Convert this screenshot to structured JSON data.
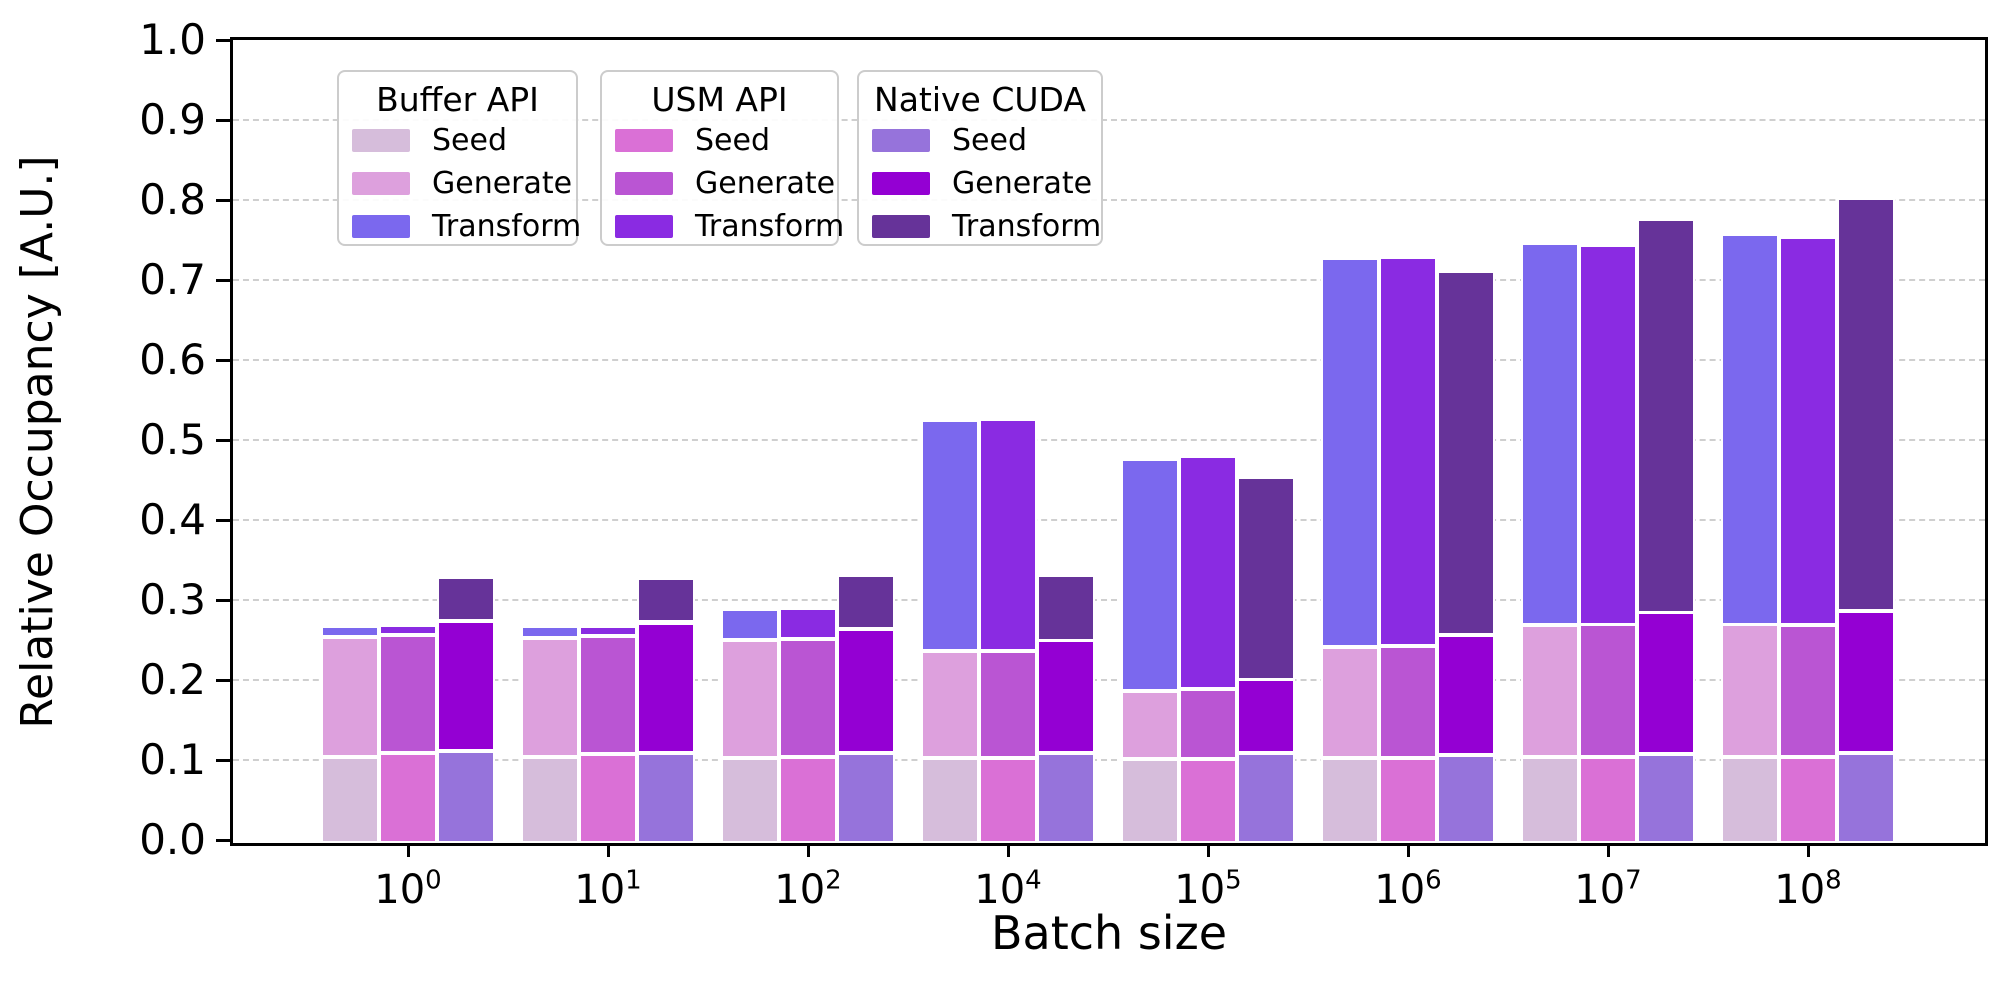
{
  "chart_data": {
    "type": "bar",
    "stacked": true,
    "title": "",
    "xlabel": "Batch size",
    "ylabel": "Relative Occupancy [A.U.]",
    "ylim": [
      0.0,
      1.0
    ],
    "yticks": [
      "0.0",
      "0.1",
      "0.2",
      "0.3",
      "0.4",
      "0.5",
      "0.6",
      "0.7",
      "0.8",
      "0.9",
      "1.0"
    ],
    "grid": "horizontal dashed lines at every 0.1",
    "legend_position": "upper left, three framed boxes",
    "categories": [
      "10^0",
      "10^1",
      "10^2",
      "10^4",
      "10^5",
      "10^6",
      "10^7",
      "10^8"
    ],
    "categories_display": [
      {
        "base": "10",
        "exp": "0"
      },
      {
        "base": "10",
        "exp": "1"
      },
      {
        "base": "10",
        "exp": "2"
      },
      {
        "base": "10",
        "exp": "4"
      },
      {
        "base": "10",
        "exp": "5"
      },
      {
        "base": "10",
        "exp": "6"
      },
      {
        "base": "10",
        "exp": "7"
      },
      {
        "base": "10",
        "exp": "8"
      }
    ],
    "series_groups": [
      {
        "title": "Buffer API",
        "segments": [
          {
            "name": "Seed",
            "color": "#d6bddb",
            "values": [
              0.108,
              0.107,
              0.106,
              0.106,
              0.105,
              0.106,
              0.107,
              0.107
            ]
          },
          {
            "name": "Generate",
            "color": "#dda0dd",
            "values": [
              0.15,
              0.149,
              0.148,
              0.134,
              0.085,
              0.139,
              0.165,
              0.166
            ]
          },
          {
            "name": "Transform",
            "color": "#7b68ee",
            "values": [
              0.014,
              0.015,
              0.039,
              0.289,
              0.29,
              0.486,
              0.478,
              0.489
            ]
          }
        ]
      },
      {
        "title": "USM API",
        "segments": [
          {
            "name": "Seed",
            "color": "#da70d6",
            "values": [
              0.112,
              0.111,
              0.107,
              0.106,
              0.105,
              0.106,
              0.107,
              0.107
            ]
          },
          {
            "name": "Generate",
            "color": "#ba55d3",
            "values": [
              0.148,
              0.148,
              0.148,
              0.134,
              0.087,
              0.14,
              0.166,
              0.165
            ]
          },
          {
            "name": "Transform",
            "color": "#8a2be2",
            "values": [
              0.012,
              0.012,
              0.039,
              0.29,
              0.291,
              0.486,
              0.475,
              0.485
            ]
          }
        ]
      },
      {
        "title": "Native CUDA",
        "segments": [
          {
            "name": "Seed",
            "color": "#9673db",
            "values": [
              0.115,
              0.113,
              0.113,
              0.112,
              0.112,
              0.11,
              0.111,
              0.113
            ]
          },
          {
            "name": "Generate",
            "color": "#9400d3",
            "values": [
              0.162,
              0.163,
              0.155,
              0.141,
              0.092,
              0.15,
              0.177,
              0.177
            ]
          },
          {
            "name": "Transform",
            "color": "#663399",
            "values": [
              0.055,
              0.055,
              0.067,
              0.083,
              0.254,
              0.455,
              0.492,
              0.516
            ]
          }
        ]
      }
    ]
  },
  "axes": {
    "xlabel": "Batch size",
    "ylabel": "Relative Occupancy [A.U.]"
  },
  "style": {
    "grid_color": "#cfcfcf",
    "spine_color": "#000000",
    "bar_edge_color": "#ffffff",
    "legend_border_color": "#cccccc"
  }
}
